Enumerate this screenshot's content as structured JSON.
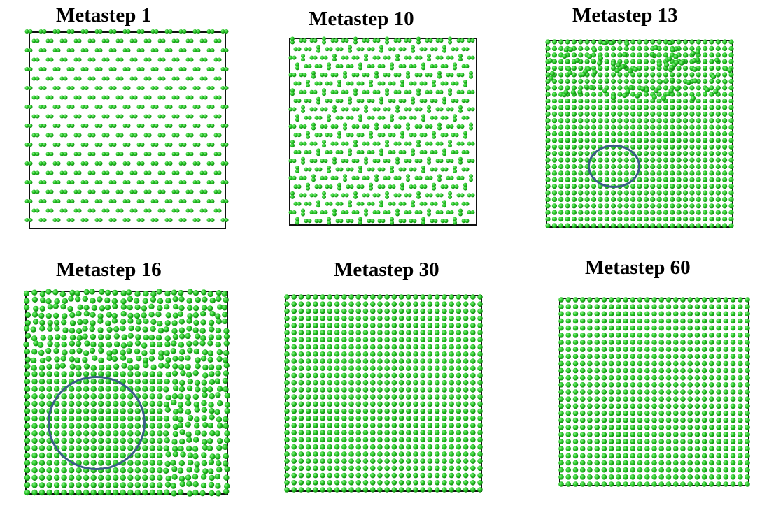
{
  "colors": {
    "atom": "#22c422",
    "atom_highlight": "#8af08a",
    "atom_edge": "#127812",
    "frame": "#111111",
    "marker": "#3b5f86"
  },
  "panels": [
    {
      "title": "Metastep 1",
      "structure": "sparse-dimers",
      "highlight_region": false
    },
    {
      "title": "Metastep 10",
      "structure": "dimer-pairs",
      "highlight_region": false
    },
    {
      "title": "Metastep 13",
      "structure": "partial-lattice",
      "highlight_region": true
    },
    {
      "title": "Metastep 16",
      "structure": "growing-lattice",
      "highlight_region": true
    },
    {
      "title": "Metastep 30",
      "structure": "square-lattice",
      "highlight_region": false
    },
    {
      "title": "Metastep 60",
      "structure": "square-lattice",
      "highlight_region": false
    }
  ]
}
